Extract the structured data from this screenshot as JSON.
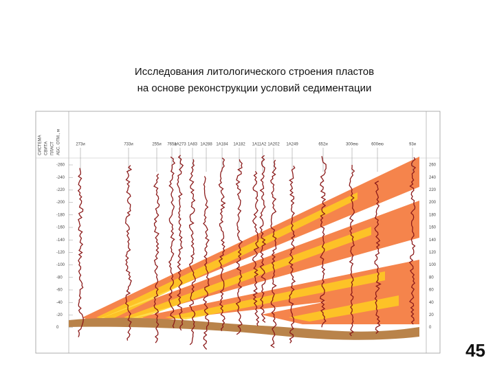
{
  "header": {
    "title_line1": "Исследования литологического строения пластов",
    "title_line2": "на основе реконструкции условий седиментации"
  },
  "diagram": {
    "column_headers": [
      "СИСТЕМА",
      "СВИТА",
      "ПЛАСТ",
      "АБС. ОТМ., м"
    ],
    "wells": [
      "273и",
      "733и",
      "255и",
      "765и",
      "1А273",
      "1А83",
      "1А288",
      "1А184",
      "1А182",
      "1А1",
      "1А2",
      "1А202",
      "1А249",
      "652и",
      "300ею",
      "600ею",
      "93и"
    ],
    "depth_left": [
      "-260",
      "-240",
      "-220",
      "-200",
      "-180",
      "-160",
      "-140",
      "-120",
      "-100",
      "-80",
      "-60",
      "-40",
      "-20",
      "0"
    ],
    "depth_right": [
      "260",
      "240",
      "220",
      "200",
      "180",
      "160",
      "140",
      "120",
      "100",
      "80",
      "60",
      "40",
      "20",
      "0"
    ]
  },
  "page_number": "45"
}
